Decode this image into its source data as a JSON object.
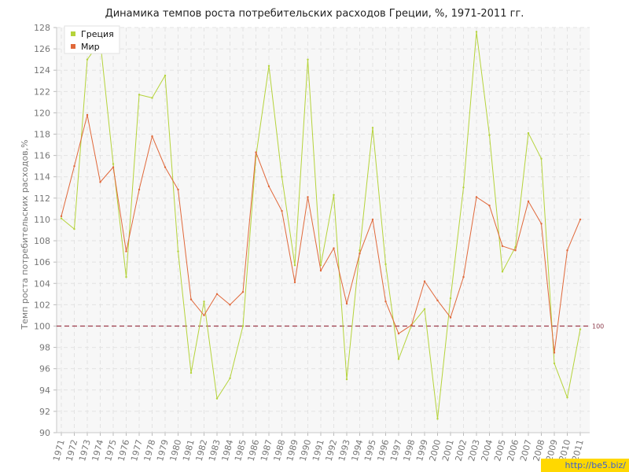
{
  "chart_data": {
    "type": "line",
    "title": "Динамика темпов роста потребительских расходов Греции, %, 1971-2011 гг.",
    "xlabel": "",
    "ylabel": "Темп роста потребительских расходов,%",
    "ylim": [
      90,
      128
    ],
    "yticks": [
      90,
      92,
      94,
      96,
      98,
      100,
      102,
      104,
      106,
      108,
      110,
      112,
      114,
      116,
      118,
      120,
      122,
      124,
      126,
      128
    ],
    "grid": true,
    "legend_position": "top-left",
    "categories": [
      "1971",
      "1972",
      "1973",
      "1974",
      "1975",
      "1976",
      "1977",
      "1978",
      "1979",
      "1980",
      "1981",
      "1982",
      "1983",
      "1984",
      "1985",
      "1986",
      "1987",
      "1988",
      "1989",
      "1990",
      "1991",
      "1992",
      "1993",
      "1994",
      "1995",
      "1996",
      "1997",
      "1998",
      "1999",
      "2000",
      "2001",
      "2002",
      "2003",
      "2004",
      "2005",
      "2006",
      "2007",
      "2008",
      "2009",
      "2010",
      "2011"
    ],
    "series": [
      {
        "name": "Греция",
        "color": "#b5d33b",
        "values": [
          110.1,
          109.1,
          125.0,
          126.7,
          115.2,
          104.6,
          121.7,
          121.4,
          123.5,
          107.0,
          95.6,
          102.3,
          93.2,
          95.1,
          100.0,
          115.9,
          124.4,
          114.0,
          105.7,
          125.0,
          105.7,
          112.3,
          95.0,
          107.1,
          118.6,
          105.8,
          96.9,
          100.1,
          101.6,
          91.3,
          102.6,
          113.0,
          127.6,
          117.9,
          105.1,
          107.4,
          118.1,
          115.7,
          96.5,
          93.3,
          99.7
        ]
      },
      {
        "name": "Мир",
        "color": "#e0683a",
        "values": [
          110.3,
          115.0,
          119.8,
          113.5,
          114.9,
          107.0,
          112.8,
          117.8,
          114.9,
          112.8,
          102.5,
          101.0,
          103.0,
          102.0,
          103.2,
          116.3,
          113.1,
          110.8,
          104.1,
          112.1,
          105.2,
          107.3,
          102.1,
          106.8,
          110.0,
          102.3,
          99.3,
          100.1,
          104.2,
          102.4,
          100.8,
          104.6,
          112.1,
          111.3,
          107.5,
          107.1,
          111.7,
          109.6,
          97.5,
          107.1,
          110.0
        ]
      }
    ],
    "reference_line": {
      "value": 100,
      "label": "100",
      "color": "#9b3a4a"
    }
  },
  "watermark": "http://be5.biz/"
}
